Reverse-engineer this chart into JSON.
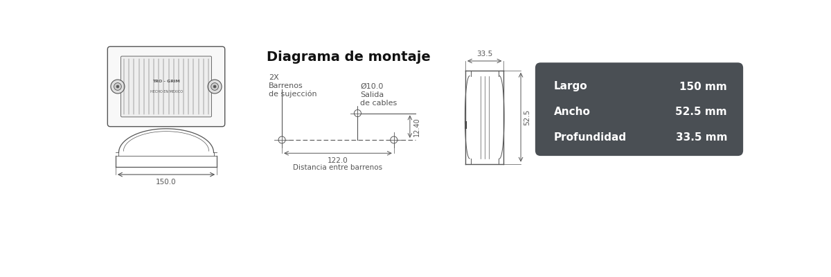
{
  "bg_color": "#ffffff",
  "line_color": "#555555",
  "dark_box_color": "#4a4f54",
  "dark_box_text_color": "#ffffff",
  "title": "Diagrama de montaje",
  "title_fontsize": 14,
  "dim_largo": "150 mm",
  "dim_ancho": "52.5 mm",
  "dim_prof": "33.5 mm",
  "label_largo": "Largo",
  "label_ancho": "Ancho",
  "label_prof": "Profundidad",
  "dim_150": "150.0",
  "dim_33_5": "33.5",
  "dim_52_5": "52.5",
  "dim_122": "122.0",
  "dim_12_40": "12.40",
  "dim_10": "Ø10.0",
  "label_2x": "2X\nBarrenos\nde sujección",
  "label_salida_1": "Salida",
  "label_salida_2": "de cables",
  "label_distancia1": "122.0",
  "label_distancia2": "Distancia entre barrenos"
}
